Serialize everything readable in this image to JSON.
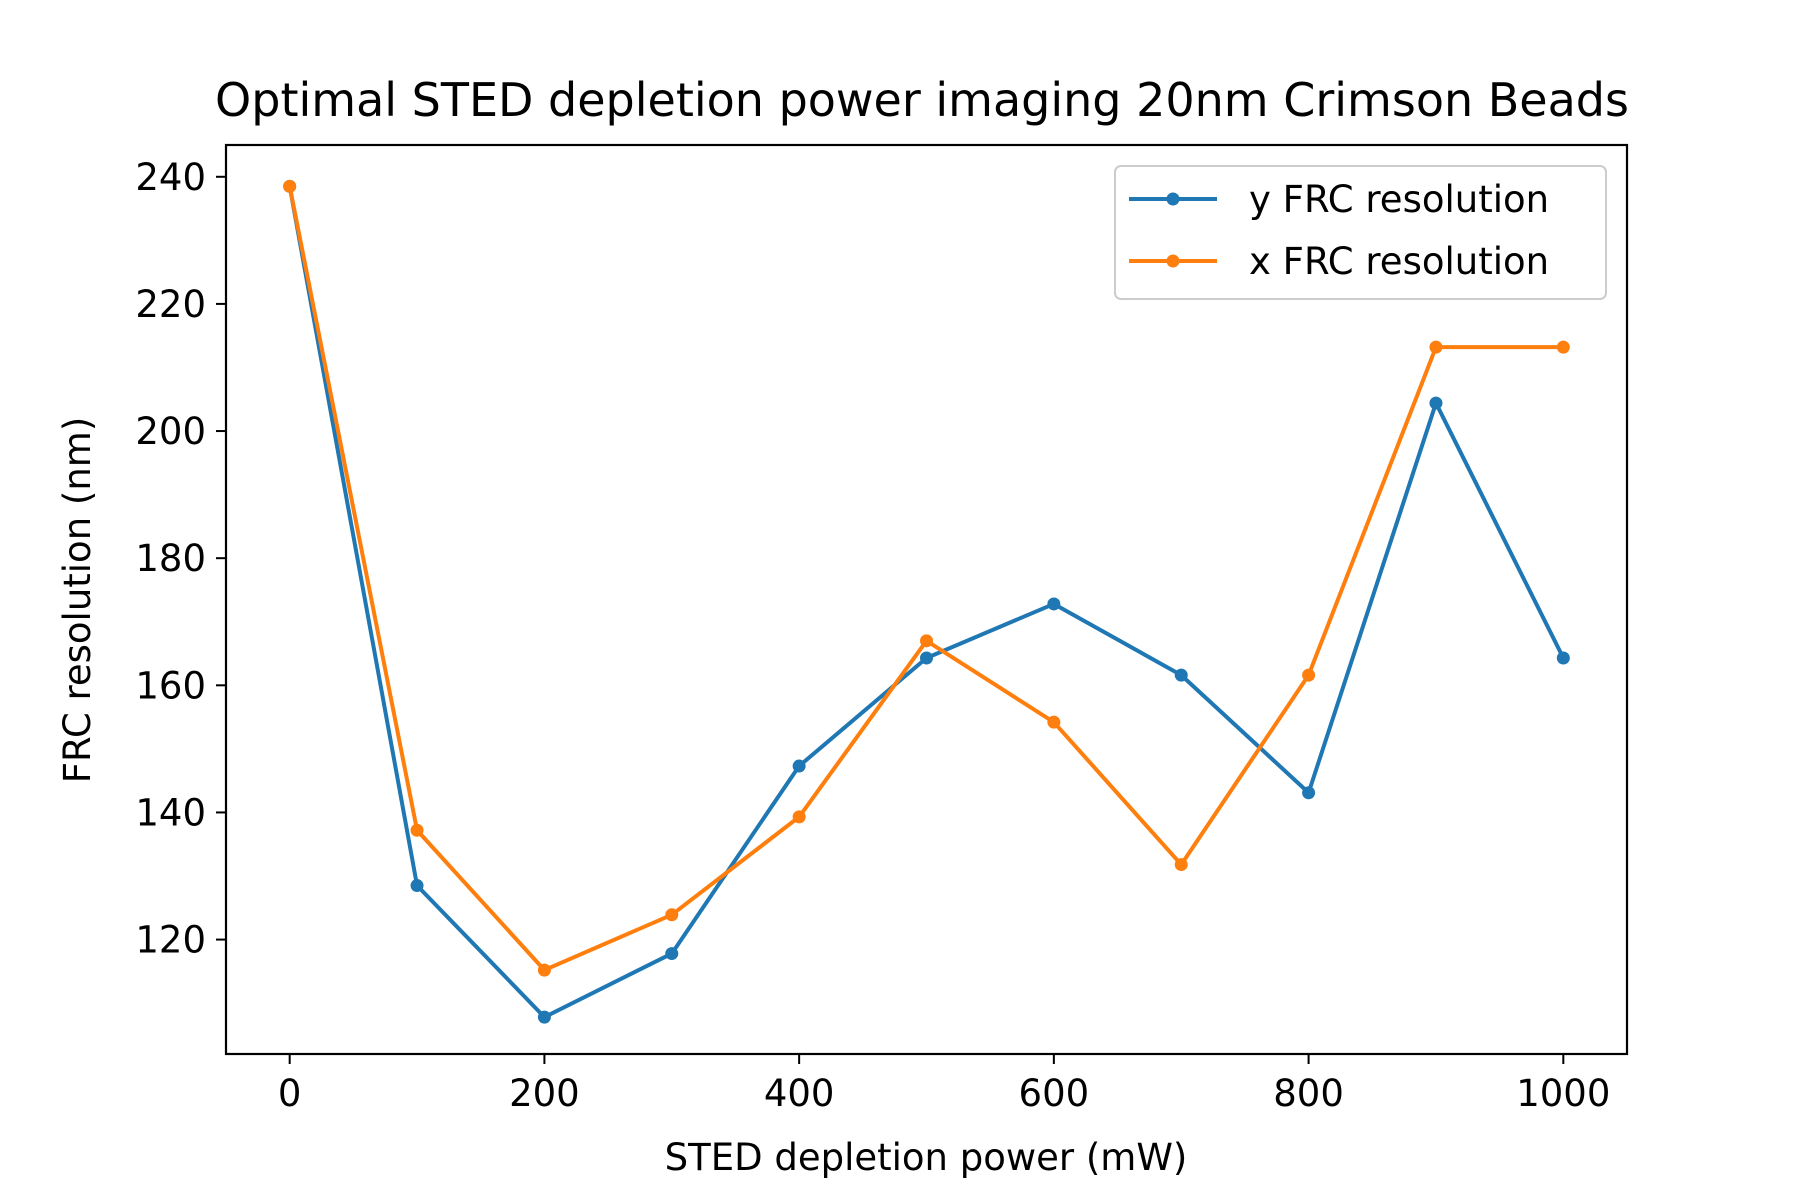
{
  "chart_data": {
    "type": "line",
    "title": "Optimal STED depletion power imaging 20nm Crimson Beads",
    "xlabel": "STED depletion power (mW)",
    "ylabel": "FRC resolution (nm)",
    "xlim": [
      -50,
      1050
    ],
    "ylim": [
      102,
      245
    ],
    "xticks": [
      0,
      200,
      400,
      600,
      800,
      1000
    ],
    "yticks": [
      120,
      140,
      160,
      180,
      200,
      220,
      240
    ],
    "grid": false,
    "legend_position": "top-right",
    "x": [
      0,
      100,
      200,
      300,
      400,
      500,
      600,
      700,
      800,
      900,
      1000
    ],
    "series": [
      {
        "name": "y FRC resolution",
        "color": "#1f77b4",
        "values": [
          238.5,
          128.5,
          107.8,
          117.8,
          147.3,
          164.3,
          172.8,
          161.6,
          143.1,
          204.4,
          164.3
        ]
      },
      {
        "name": "x FRC resolution",
        "color": "#ff7f0e",
        "values": [
          238.5,
          137.2,
          115.2,
          123.9,
          139.3,
          167.0,
          154.2,
          131.8,
          161.6,
          213.2,
          213.2
        ]
      }
    ]
  }
}
